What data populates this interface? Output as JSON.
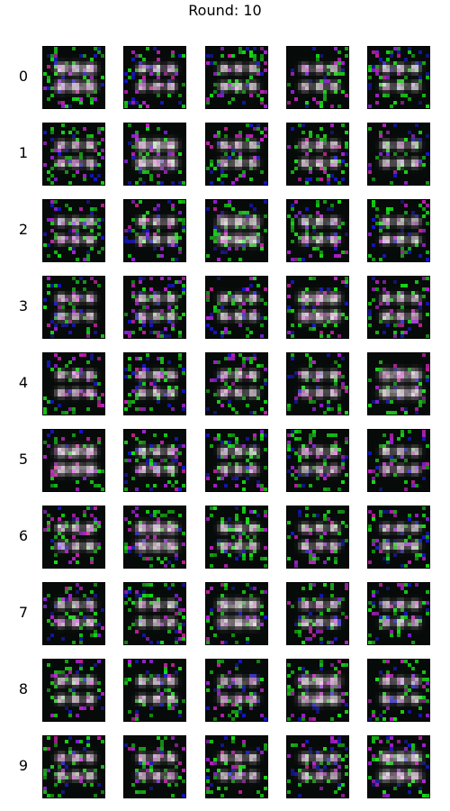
{
  "figure": {
    "title": "Round: 10"
  },
  "grid": {
    "row_labels": [
      "0",
      "1",
      "2",
      "3",
      "4",
      "5",
      "6",
      "7",
      "8",
      "9"
    ],
    "columns": 5,
    "tile_pattern": "2x3 grid of bright white-pink blobs on near-black background with green and magenta pixel noise"
  },
  "colors": {
    "background": "#ffffff",
    "tile_background": "#050808",
    "blob_core": "#f4e8f0",
    "blob_tint": "#c070c0",
    "noise_green": "#30c030",
    "noise_magenta": "#a040a0"
  }
}
